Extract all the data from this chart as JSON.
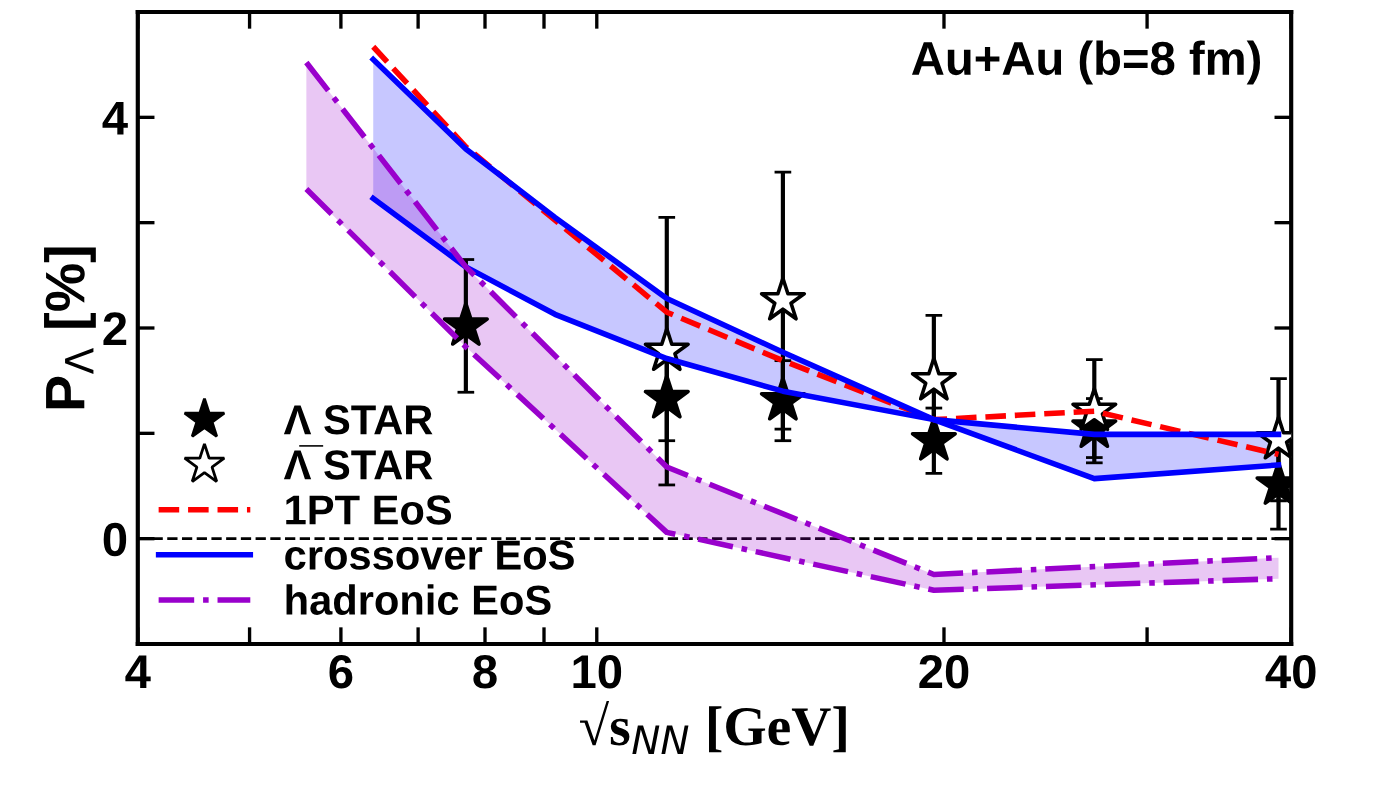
{
  "chart_data": {
    "type": "line",
    "xlabel": "√s$_{NN}$ [GeV]",
    "ylabel": "P$_{Λ}$ [%]",
    "log": "x",
    "xlim": [
      4,
      40
    ],
    "xticks": [
      4,
      {
        "value": 5,
        "label": null
      },
      6,
      {
        "value": 7,
        "label": null
      },
      8,
      {
        "value": 9,
        "label": null
      },
      10,
      20,
      {
        "value": 30,
        "label": null
      },
      40
    ],
    "ylim": [
      -1,
      5
    ],
    "yticks": [
      {
        "value": -1,
        "label": null
      },
      0,
      {
        "value": 1,
        "label": null
      },
      2,
      {
        "value": 3,
        "label": null
      },
      4,
      {
        "value": 5,
        "label": null
      }
    ],
    "annotations": [
      "Au+Au (b=8 fm)"
    ],
    "ref_lines": [
      {
        "axis": "y",
        "value": 0,
        "color": "#000000",
        "line_style": "dashed"
      }
    ],
    "legend": "bottom left",
    "grid": false,
    "series": [
      {
        "name": "1PT EoS",
        "line_style": "dashed",
        "color": "#ff0000",
        "x": [
          6.4,
          7.7,
          11.5,
          14.5,
          19.6,
          27,
          39
        ],
        "values": [
          4.67,
          3.72,
          2.15,
          1.69,
          1.13,
          1.21,
          0.8
        ]
      },
      {
        "name": "crossover EoS",
        "line_style": "solid",
        "color": "#0000ff",
        "x": [
          6.4,
          7.7,
          9.2,
          11.5,
          14.5,
          19.6,
          27,
          39
        ],
        "values": [
          4.55,
          3.7,
          3.05,
          2.28,
          1.77,
          1.13,
          0.99,
          0.99
        ],
        "upper": [
          4.55,
          3.7,
          3.05,
          2.28,
          1.77,
          1.13,
          0.99,
          0.99
        ],
        "lower": [
          3.23,
          2.58,
          2.13,
          1.71,
          1.4,
          1.13,
          0.57,
          0.7
        ]
      },
      {
        "line_style": "solid",
        "color": "#0000fe",
        "x": [
          6.4,
          7.7,
          9.2,
          11.5,
          14.5,
          19.6,
          27,
          39
        ],
        "values": [
          3.23,
          2.58,
          2.13,
          1.71,
          1.4,
          1.13,
          0.57,
          0.7
        ]
      },
      {
        "name": "hadronic EoS",
        "line_style": "dashdot",
        "color": "#9900cc",
        "x": [
          5.6,
          7.7,
          11.5,
          19.6,
          39
        ],
        "values": [
          4.52,
          2.58,
          0.68,
          -0.34,
          -0.18
        ],
        "upper": [
          4.52,
          2.58,
          0.68,
          -0.34,
          -0.18
        ],
        "lower": [
          3.32,
          1.82,
          0.06,
          -0.49,
          -0.38
        ]
      },
      {
        "line_style": "dashdot",
        "color": "#9901cc",
        "x": [
          5.6,
          7.7,
          11.5,
          19.6,
          39
        ],
        "values": [
          3.32,
          1.82,
          0.06,
          -0.49,
          -0.38
        ]
      },
      {
        "name": "Λ STAR",
        "type": "scatter",
        "marker": "star",
        "color": "#000000",
        "colors": [
          "#000000",
          "#000000",
          "#000000",
          "#000000",
          "#000000",
          "#000000"
        ],
        "x": [
          7.7,
          11.5,
          14.5,
          19.6,
          27,
          39
        ],
        "values": [
          2.02,
          1.33,
          1.31,
          0.93,
          1.05,
          0.51
        ],
        "errors": [
          0.63,
          0.4,
          0.38,
          0.31,
          0.28,
          0.42
        ]
      },
      {
        "name": "Λ̅ STAR",
        "type": "scatter",
        "marker": "star",
        "color": "#000000",
        "colors": [
          "#ffffff",
          "#ffffff",
          "#ffffff",
          "#ffffff",
          "#ffffff"
        ],
        "x": [
          11.5,
          14.5,
          19.6,
          27,
          39
        ],
        "values": [
          1.78,
          2.26,
          1.5,
          1.21,
          0.94
        ],
        "errors": [
          1.27,
          1.22,
          0.62,
          0.49,
          0.58
        ]
      }
    ]
  }
}
